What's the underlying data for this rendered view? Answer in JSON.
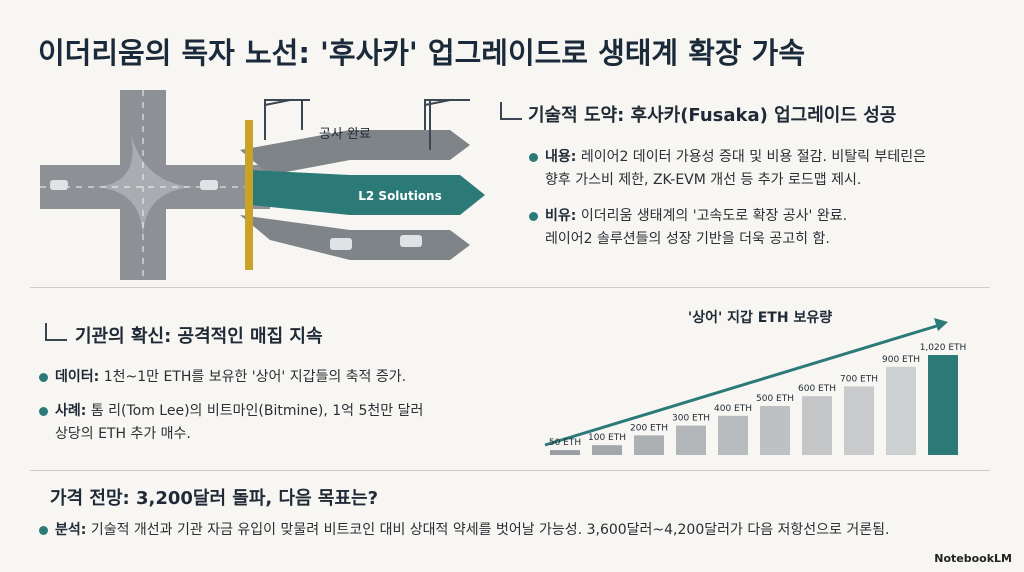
{
  "title": "이더리움의 독자 노선: '후사카' 업그레이드로 생태계 확장 가속",
  "illustration": {
    "labels": [
      "공사 완료",
      "L2 Solutions"
    ]
  },
  "sections": [
    {
      "heading": "기술적 도약: 후사카(Fusaka) 업그레이드 성공",
      "bullets": [
        {
          "label": "내용:",
          "lines": [
            "레이어2 데이터 가용성 증대 및 비용 절감. 비탈릭 부테린은",
            "향후 가스비 제한, ZK-EVM 개선 등 추가 로드맵 제시."
          ]
        },
        {
          "label": "비유:",
          "lines": [
            "이더리움 생태계의 '고속도로 확장 공사' 완료.",
            "레이어2 솔루션들의 성장 기반을 더욱 공고히 함."
          ]
        }
      ]
    },
    {
      "heading": "기관의 확신: 공격적인 매집 지속",
      "bullets": [
        {
          "label": "데이터:",
          "lines": [
            "1천~1만 ETH를 보유한 '상어' 지갑들의 축적 증가."
          ]
        },
        {
          "label": "사례:",
          "lines": [
            "톰 리(Tom Lee)의 비트마인(Bitmine), 1억 5천만 달러",
            "상당의 ETH 추가 매수."
          ]
        }
      ]
    },
    {
      "heading": "가격 전망: 3,200달러 돌파, 다음 목표는?",
      "bullets": [
        {
          "label": "분석:",
          "lines": [
            "기술적 개선과 기관 자금 유입이 맞물려 비트코인 대비 상대적 약세를 벗어날 가능성. 3,600달러~4,200달러가 다음 저항선으로 거론됨."
          ]
        }
      ]
    }
  ],
  "chart_data": {
    "type": "bar",
    "title": "'상어' 지갑 ETH 보유량",
    "values": [
      50,
      100,
      200,
      300,
      400,
      500,
      600,
      700,
      900,
      1020
    ],
    "value_labels": [
      "50 ETH",
      "100 ETH",
      "200 ETH",
      "300 ETH",
      "400 ETH",
      "500 ETH",
      "600 ETH",
      "700 ETH",
      "900 ETH",
      "1,020 ETH"
    ],
    "colors": [
      "#9a9ea2",
      "#a3a7aa",
      "#acb0b3",
      "#b3b6b9",
      "#b9bcbe",
      "#bec1c3",
      "#c4c6c8",
      "#c8cacc",
      "#cdd0d1",
      "#2b7a78"
    ]
  },
  "footer": {
    "brand": "NotebookLM"
  }
}
